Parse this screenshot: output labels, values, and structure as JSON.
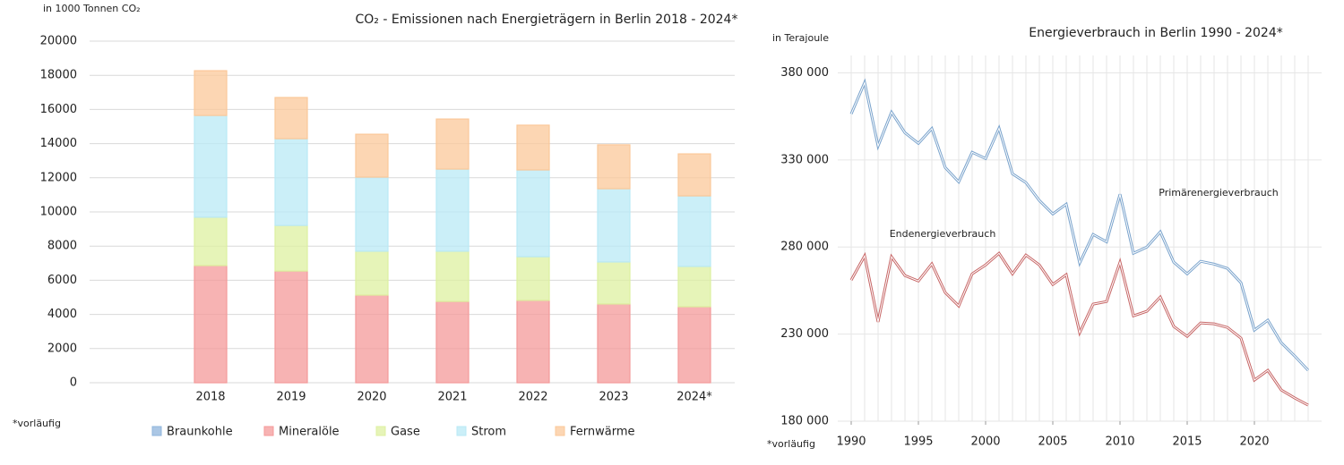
{
  "chart_data": [
    {
      "type": "stacked_bar",
      "title": "CO₂ - Emissionen nach Energieträgern in Berlin 2018 - 2024*",
      "y_label": "in 1000 Tonnen CO₂",
      "note": "*vorläufig",
      "categories": [
        null,
        "2018",
        "2019",
        "2020",
        "2021",
        "2022",
        "2023",
        "2024*"
      ],
      "series": [
        {
          "name": "Braunkohle",
          "color": "#8fb4dc",
          "values": [
            null,
            0,
            0,
            0,
            0,
            0,
            0,
            0
          ]
        },
        {
          "name": "Mineralöle",
          "color": "#f49a9a",
          "values": [
            null,
            6860,
            6540,
            5130,
            4760,
            4820,
            4610,
            4450
          ]
        },
        {
          "name": "Gase",
          "color": "#ddf0a0",
          "values": [
            null,
            2830,
            2670,
            2570,
            2940,
            2560,
            2460,
            2360
          ]
        },
        {
          "name": "Strom",
          "color": "#b9e9f6",
          "values": [
            null,
            5960,
            5080,
            4340,
            4810,
            5080,
            4290,
            4130
          ]
        },
        {
          "name": "Fernwärme",
          "color": "#fbc899",
          "values": [
            null,
            2620,
            2410,
            2510,
            2930,
            2620,
            2570,
            2460
          ]
        }
      ],
      "ylim": [
        0,
        20000
      ],
      "yticks": [
        0,
        2000,
        4000,
        6000,
        8000,
        10000,
        12000,
        14000,
        16000,
        18000,
        20000
      ],
      "grid": true,
      "legend": "bottom"
    },
    {
      "type": "line",
      "title": "Energieverbrauch in Berlin 1990 - 2024*",
      "y_label": "in Terajoule",
      "note": "*vorläufig",
      "x": [
        1990,
        1991,
        1992,
        1993,
        1994,
        1995,
        1996,
        1997,
        1998,
        1999,
        2000,
        2001,
        2002,
        2003,
        2004,
        2005,
        2006,
        2007,
        2008,
        2009,
        2010,
        2011,
        2012,
        2013,
        2014,
        2015,
        2016,
        2017,
        2018,
        2019,
        2020,
        2021,
        2022,
        2023,
        2024
      ],
      "series": [
        {
          "name": "Primärenergieverbrauch",
          "color": "#7aa3cc",
          "values": [
            356400,
            374400,
            338000,
            357400,
            345600,
            339500,
            348000,
            325600,
            317400,
            334400,
            330800,
            348200,
            322000,
            317000,
            306700,
            299000,
            304600,
            270800,
            287200,
            283000,
            310300,
            276400,
            280000,
            288700,
            271300,
            264600,
            271800,
            270200,
            267700,
            259500,
            232300,
            238000,
            225000,
            217400,
            209200
          ]
        },
        {
          "name": "Endenergieverbrauch",
          "color": "#c76767",
          "values": [
            261000,
            274900,
            237000,
            274400,
            263600,
            260500,
            270300,
            253800,
            246200,
            264600,
            269700,
            276400,
            264600,
            275400,
            269700,
            258500,
            264100,
            230800,
            247200,
            248700,
            271300,
            240500,
            243100,
            251300,
            234400,
            228700,
            236400,
            235900,
            233800,
            227700,
            203600,
            209200,
            197900,
            193300,
            189200
          ]
        }
      ],
      "xlim": [
        1989,
        2025
      ],
      "xticks": [
        1990,
        1995,
        2000,
        2005,
        2010,
        2015,
        2020
      ],
      "ylim": [
        180000,
        390000
      ],
      "yticks": [
        {
          "value": 180000,
          "label": "180 000"
        },
        {
          "value": 230000,
          "label": "230 000"
        },
        {
          "value": 280000,
          "label": "280 000"
        },
        {
          "value": 330000,
          "label": "330 000"
        },
        {
          "value": 380000,
          "label": "380 000"
        }
      ],
      "grid": true
    }
  ]
}
